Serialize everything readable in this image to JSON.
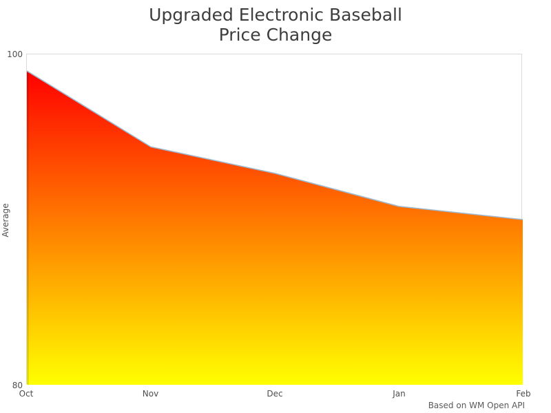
{
  "chart_data": {
    "type": "area",
    "title": "Upgraded Electronic Baseball Price Change",
    "title_lines": [
      "Upgraded Electronic Baseball",
      "Price Change"
    ],
    "categories": [
      "Oct",
      "Nov",
      "Dec",
      "Jan",
      "Feb"
    ],
    "series": [
      {
        "name": "Average",
        "values": [
          99.0,
          94.4,
          92.8,
          90.8,
          90.0
        ]
      }
    ],
    "xlabel": "",
    "ylabel": "Average",
    "ylim": [
      80,
      100
    ],
    "yticks": [
      80,
      100
    ],
    "grid": false,
    "legend": "none",
    "caption": "Based on WM Open API",
    "colors": {
      "gradient_top": "#ff0000",
      "gradient_bottom": "#ffff00",
      "line": "#9eb8ce",
      "plot_border": "#d9d9d9",
      "title_text": "#3d3d3d",
      "tick_text": "#4d4d4d",
      "caption_text": "#595959"
    }
  }
}
